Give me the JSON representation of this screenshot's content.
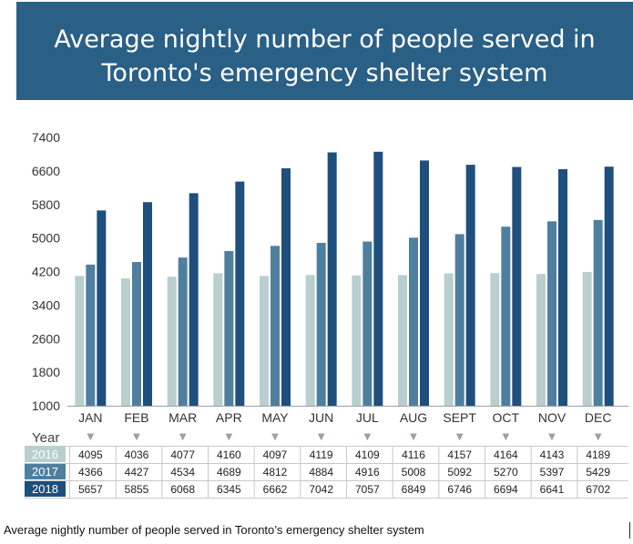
{
  "title": {
    "line1": "Average nightly number of people served in",
    "line2": "Toronto's emergency shelter system"
  },
  "caption": "Average nightly number of people served in Toronto’s emergency shelter system",
  "chart_data": {
    "type": "bar",
    "categories": [
      "JAN",
      "FEB",
      "MAR",
      "APR",
      "MAY",
      "JUN",
      "JUL",
      "AUG",
      "SEPT",
      "OCT",
      "NOV",
      "DEC"
    ],
    "series": [
      {
        "name": "2016",
        "color": "#b9cfcf",
        "values": [
          4095,
          4036,
          4077,
          4160,
          4097,
          4119,
          4109,
          4116,
          4157,
          4164,
          4143,
          4189
        ]
      },
      {
        "name": "2017",
        "color": "#4f7f9f",
        "values": [
          4366,
          4427,
          4534,
          4689,
          4812,
          4884,
          4916,
          5008,
          5092,
          5270,
          5397,
          5429
        ]
      },
      {
        "name": "2018",
        "color": "#1e4f7d",
        "values": [
          5657,
          5855,
          6068,
          6345,
          6662,
          7042,
          7057,
          6849,
          6746,
          6694,
          6641,
          6702
        ]
      }
    ],
    "ylim": [
      1000,
      7400
    ],
    "yticks": [
      1000,
      1800,
      2600,
      3400,
      4200,
      5000,
      5800,
      6600,
      7400
    ],
    "grid": false,
    "table_header": "Year",
    "marker_glyph": "▼"
  }
}
